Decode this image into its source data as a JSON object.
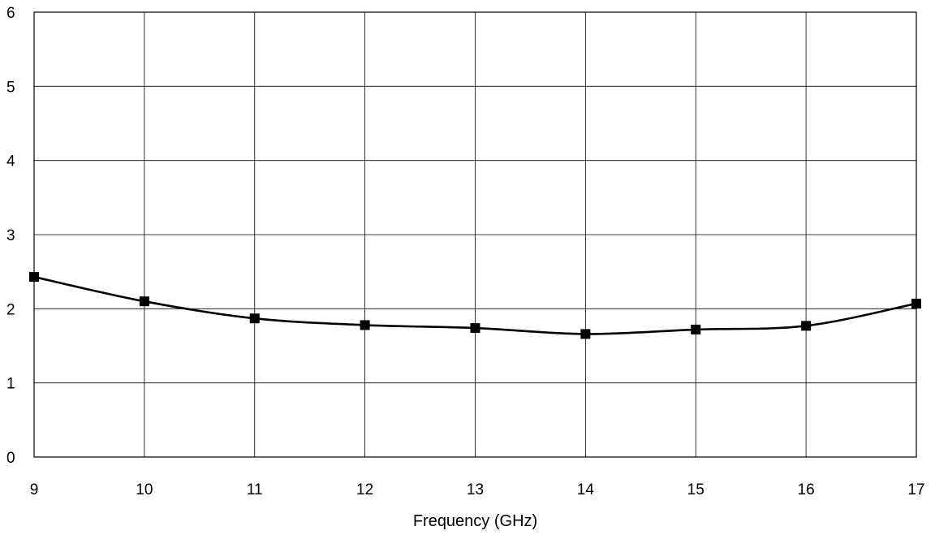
{
  "chart_data": {
    "type": "line",
    "xlabel": "Frequency (GHz)",
    "ylabel": "",
    "xlim": [
      9,
      17
    ],
    "ylim": [
      0,
      6
    ],
    "x_ticks": [
      "9",
      "10",
      "11",
      "12",
      "13",
      "14",
      "15",
      "16",
      "17"
    ],
    "y_ticks": [
      "0",
      "1",
      "2",
      "3",
      "4",
      "5",
      "6"
    ],
    "grid": true,
    "series": [
      {
        "marker": "square",
        "color": "#000000",
        "x": [
          9,
          10,
          11,
          12,
          13,
          14,
          15,
          16,
          17
        ],
        "y": [
          2.43,
          2.1,
          1.87,
          1.78,
          1.74,
          1.66,
          1.72,
          1.77,
          2.07
        ]
      }
    ]
  }
}
